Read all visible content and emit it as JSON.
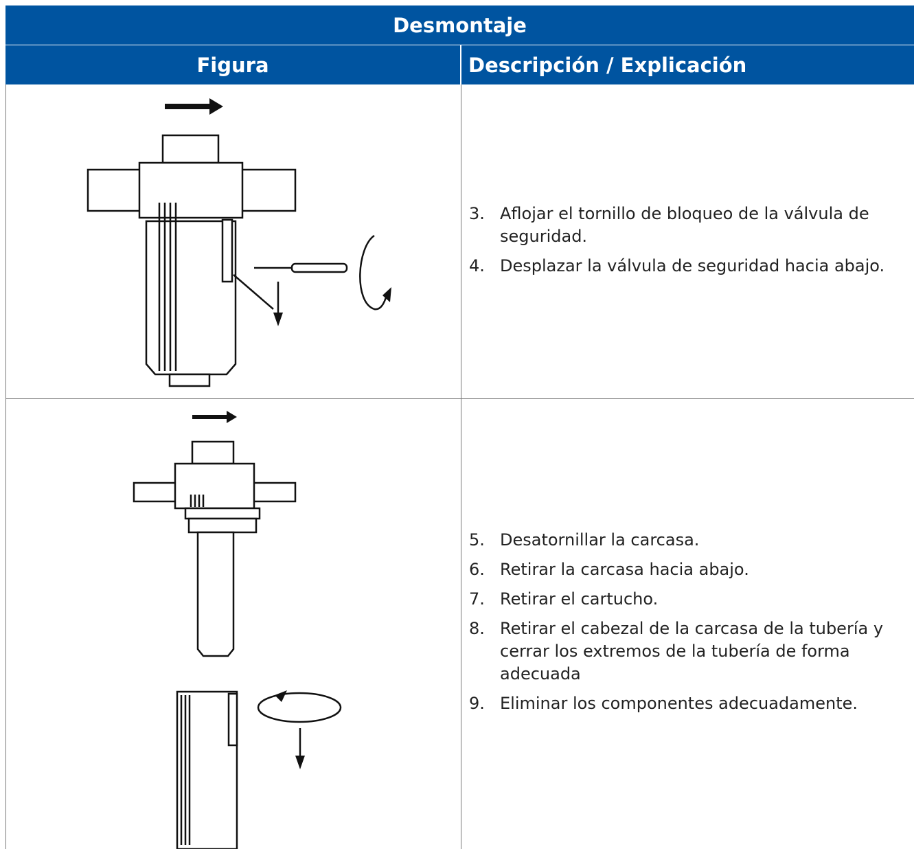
{
  "table": {
    "title": "Desmontaje",
    "headers": [
      "Figura",
      "Descripción / Explicación"
    ],
    "rows": [
      {
        "steps": [
          {
            "number": "3.",
            "text": "Aflojar el tornillo de bloqueo de la válvula de seguridad."
          },
          {
            "number": "4.",
            "text": "Desplazar la válvula de seguridad hacia abajo."
          }
        ]
      },
      {
        "steps": [
          {
            "number": "5.",
            "text": "Desatornillar la carcasa."
          },
          {
            "number": "6.",
            "text": "Retirar la carcasa hacia abajo."
          },
          {
            "number": "7.",
            "text": "Retirar el cartucho."
          },
          {
            "number": "8.",
            "text": "Retirar el cabezal de la carcasa de la tubería y cerrar los extremos de la tubería de forma adecuada"
          },
          {
            "number": "9.",
            "text": "Eliminar los componentes adecuadamente."
          }
        ]
      }
    ]
  }
}
